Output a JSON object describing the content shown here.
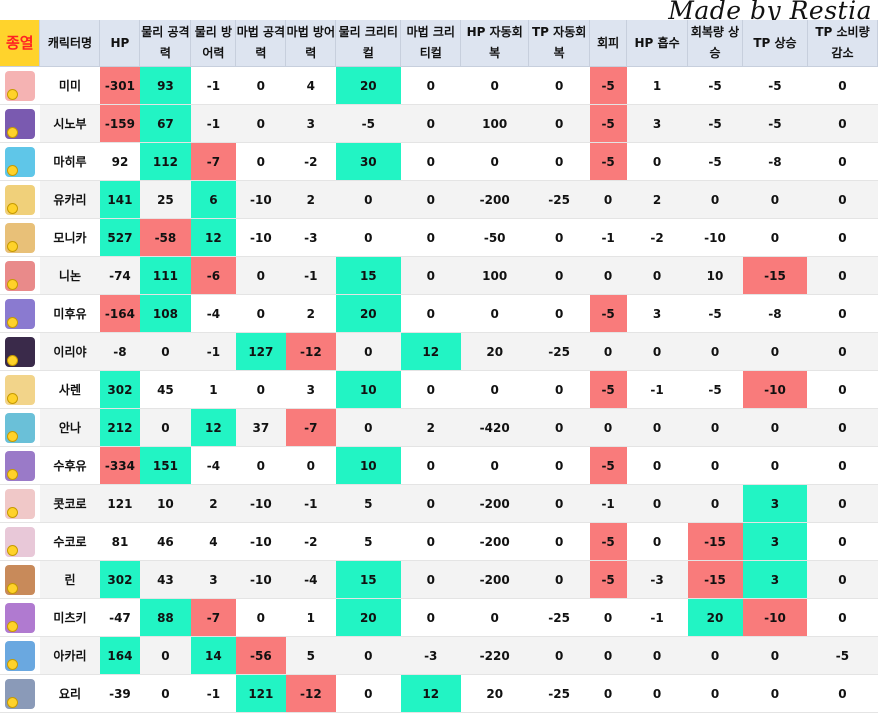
{
  "watermark": "Made by Restia",
  "header": {
    "corner": "종열",
    "name": "캐릭터명",
    "hp": "HP",
    "phys_atk": "물리 공격력",
    "phys_def": "물리 방어력",
    "mag_atk": "마법 공격력",
    "mag_def": "마법 방어력",
    "phys_crit": "물리 크리티컬",
    "mag_crit": "마법 크리티컬",
    "hp_regen": "HP 자동회복",
    "tp_regen": "TP 자동회복",
    "evasion": "회피",
    "hp_drain": "HP 흡수",
    "heal_up": "회복량 상승",
    "tp_up": "TP 상승",
    "tp_cost_down": "TP 소비량 감소"
  },
  "colors": {
    "positive": "#22f4c4",
    "negative": "#f97b7b",
    "header": "#dde4f0",
    "corner": "#ffd32c"
  },
  "rows": [
    {
      "name": "미미",
      "avatar": "#f5b3b3",
      "v": [
        "-301",
        "93",
        "-1",
        "0",
        "4",
        "20",
        "0",
        "0",
        "0",
        "-5",
        "1",
        "-5",
        "-5",
        "0"
      ],
      "hl": [
        "neg",
        "pos",
        "",
        "",
        "",
        "pos",
        "",
        "",
        "",
        "neg",
        "",
        "",
        "",
        ""
      ]
    },
    {
      "name": "시노부",
      "avatar": "#7a5ab0",
      "v": [
        "-159",
        "67",
        "-1",
        "0",
        "3",
        "-5",
        "0",
        "100",
        "0",
        "-5",
        "3",
        "-5",
        "-5",
        "0"
      ],
      "hl": [
        "neg",
        "pos",
        "",
        "",
        "",
        "",
        "",
        "",
        "",
        "neg",
        "",
        "",
        "",
        ""
      ]
    },
    {
      "name": "마히루",
      "avatar": "#5fc6e8",
      "v": [
        "92",
        "112",
        "-7",
        "0",
        "-2",
        "30",
        "0",
        "0",
        "0",
        "-5",
        "0",
        "-5",
        "-8",
        "0"
      ],
      "hl": [
        "",
        "pos",
        "neg",
        "",
        "",
        "pos",
        "",
        "",
        "",
        "neg",
        "",
        "",
        "",
        ""
      ]
    },
    {
      "name": "유카리",
      "avatar": "#f0d07a",
      "v": [
        "141",
        "25",
        "6",
        "-10",
        "2",
        "0",
        "0",
        "-200",
        "-25",
        "0",
        "2",
        "0",
        "0",
        "0"
      ],
      "hl": [
        "pos",
        "",
        "pos",
        "",
        "",
        "",
        "",
        "",
        "",
        "",
        "",
        "",
        "",
        ""
      ]
    },
    {
      "name": "모니카",
      "avatar": "#e8c078",
      "v": [
        "527",
        "-58",
        "12",
        "-10",
        "-3",
        "0",
        "0",
        "-50",
        "0",
        "-1",
        "-2",
        "-10",
        "0",
        "0"
      ],
      "hl": [
        "pos",
        "neg",
        "pos",
        "",
        "",
        "",
        "",
        "",
        "",
        "",
        "",
        "",
        "",
        ""
      ]
    },
    {
      "name": "니논",
      "avatar": "#e98a8a",
      "v": [
        "-74",
        "111",
        "-6",
        "0",
        "-1",
        "15",
        "0",
        "100",
        "0",
        "0",
        "0",
        "10",
        "-15",
        "0"
      ],
      "hl": [
        "",
        "pos",
        "neg",
        "",
        "",
        "pos",
        "",
        "",
        "",
        "",
        "",
        "",
        "neg",
        ""
      ]
    },
    {
      "name": "미후유",
      "avatar": "#8a7ad0",
      "v": [
        "-164",
        "108",
        "-4",
        "0",
        "2",
        "20",
        "0",
        "0",
        "0",
        "-5",
        "3",
        "-5",
        "-8",
        "0"
      ],
      "hl": [
        "neg",
        "pos",
        "",
        "",
        "",
        "pos",
        "",
        "",
        "",
        "neg",
        "",
        "",
        "",
        ""
      ]
    },
    {
      "name": "이리야",
      "avatar": "#3a2a4a",
      "v": [
        "-8",
        "0",
        "-1",
        "127",
        "-12",
        "0",
        "12",
        "20",
        "-25",
        "0",
        "0",
        "0",
        "0",
        "0"
      ],
      "hl": [
        "",
        "",
        "",
        "pos",
        "neg",
        "",
        "pos",
        "",
        "",
        "",
        "",
        "",
        "",
        ""
      ]
    },
    {
      "name": "사렌",
      "avatar": "#f2d48a",
      "v": [
        "302",
        "45",
        "1",
        "0",
        "3",
        "10",
        "0",
        "0",
        "0",
        "-5",
        "-1",
        "-5",
        "-10",
        "0"
      ],
      "hl": [
        "pos",
        "",
        "",
        "",
        "",
        "pos",
        "",
        "",
        "",
        "neg",
        "",
        "",
        "neg",
        ""
      ]
    },
    {
      "name": "안나",
      "avatar": "#6ac0d8",
      "v": [
        "212",
        "0",
        "12",
        "37",
        "-7",
        "0",
        "2",
        "-420",
        "0",
        "0",
        "0",
        "0",
        "0",
        "0"
      ],
      "hl": [
        "pos",
        "",
        "pos",
        "",
        "neg",
        "",
        "",
        "",
        "",
        "",
        "",
        "",
        "",
        ""
      ]
    },
    {
      "name": "수후유",
      "avatar": "#9a7ac8",
      "v": [
        "-334",
        "151",
        "-4",
        "0",
        "0",
        "10",
        "0",
        "0",
        "0",
        "-5",
        "0",
        "0",
        "0",
        "0"
      ],
      "hl": [
        "neg",
        "pos",
        "",
        "",
        "",
        "pos",
        "",
        "",
        "",
        "neg",
        "",
        "",
        "",
        ""
      ]
    },
    {
      "name": "콧코로",
      "avatar": "#f0c8c8",
      "v": [
        "121",
        "10",
        "2",
        "-10",
        "-1",
        "5",
        "0",
        "-200",
        "0",
        "-1",
        "0",
        "0",
        "3",
        "0"
      ],
      "hl": [
        "",
        "",
        "",
        "",
        "",
        "",
        "",
        "",
        "",
        "",
        "",
        "",
        "pos",
        ""
      ]
    },
    {
      "name": "수코로",
      "avatar": "#e8c8d8",
      "v": [
        "81",
        "46",
        "4",
        "-10",
        "-2",
        "5",
        "0",
        "-200",
        "0",
        "-5",
        "0",
        "-15",
        "3",
        "0"
      ],
      "hl": [
        "",
        "",
        "",
        "",
        "",
        "",
        "",
        "",
        "",
        "neg",
        "",
        "neg",
        "pos",
        ""
      ]
    },
    {
      "name": "린",
      "avatar": "#c88a5a",
      "v": [
        "302",
        "43",
        "3",
        "-10",
        "-4",
        "15",
        "0",
        "-200",
        "0",
        "-5",
        "-3",
        "-15",
        "3",
        "0"
      ],
      "hl": [
        "pos",
        "",
        "",
        "",
        "",
        "pos",
        "",
        "",
        "",
        "neg",
        "",
        "neg",
        "pos",
        ""
      ]
    },
    {
      "name": "미츠키",
      "avatar": "#b07ad0",
      "v": [
        "-47",
        "88",
        "-7",
        "0",
        "1",
        "20",
        "0",
        "0",
        "-25",
        "0",
        "-1",
        "20",
        "-10",
        "0"
      ],
      "hl": [
        "",
        "pos",
        "neg",
        "",
        "",
        "pos",
        "",
        "",
        "",
        "",
        "",
        "pos",
        "neg",
        ""
      ]
    },
    {
      "name": "아카리",
      "avatar": "#6aa8e0",
      "v": [
        "164",
        "0",
        "14",
        "-56",
        "5",
        "0",
        "-3",
        "-220",
        "0",
        "0",
        "0",
        "0",
        "0",
        "-5"
      ],
      "hl": [
        "pos",
        "",
        "pos",
        "neg",
        "",
        "",
        "",
        "",
        "",
        "",
        "",
        "",
        "",
        ""
      ]
    },
    {
      "name": "요리",
      "avatar": "#8a9ab8",
      "v": [
        "-39",
        "0",
        "-1",
        "121",
        "-12",
        "0",
        "12",
        "20",
        "-25",
        "0",
        "0",
        "0",
        "0",
        "0"
      ],
      "hl": [
        "",
        "",
        "",
        "pos",
        "neg",
        "",
        "pos",
        "",
        "",
        "",
        "",
        "",
        "",
        ""
      ]
    }
  ]
}
